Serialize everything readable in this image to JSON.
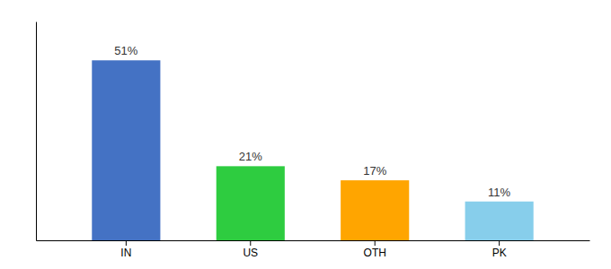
{
  "chart_data": {
    "type": "bar",
    "categories": [
      "IN",
      "US",
      "OTH",
      "PK"
    ],
    "values": [
      51,
      21,
      17,
      11
    ],
    "value_labels": [
      "51%",
      "21%",
      "17%",
      "11%"
    ],
    "colors": [
      "#4472C4",
      "#2ECC40",
      "#FFA500",
      "#87CEEB"
    ],
    "ylim": [
      0,
      62
    ],
    "yticks": [],
    "grid": false,
    "tick_labels": "x",
    "data_labels": true
  }
}
